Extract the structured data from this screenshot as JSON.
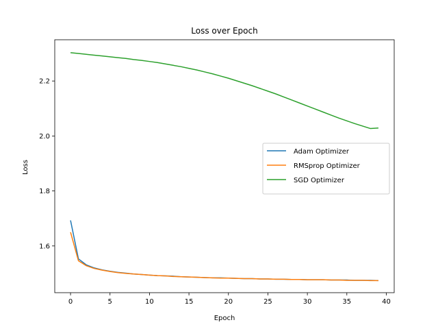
{
  "chart_data": {
    "type": "line",
    "title": "Loss over Epoch",
    "xlabel": "Epoch",
    "ylabel": "Loss",
    "xlim": [
      -2,
      41
    ],
    "ylim": [
      1.43,
      2.35
    ],
    "xticks": [
      0,
      5,
      10,
      15,
      20,
      25,
      30,
      35,
      40
    ],
    "yticks": [
      1.6,
      1.8,
      2.0,
      2.2
    ],
    "grid": false,
    "legend_position": "center-right",
    "x": [
      0,
      1,
      2,
      3,
      4,
      5,
      6,
      7,
      8,
      9,
      10,
      11,
      12,
      13,
      14,
      15,
      16,
      17,
      18,
      19,
      20,
      21,
      22,
      23,
      24,
      25,
      26,
      27,
      28,
      29,
      30,
      31,
      32,
      33,
      34,
      35,
      36,
      37,
      38,
      39
    ],
    "series": [
      {
        "name": "Adam Optimizer",
        "color": "#1f77b4",
        "values": [
          1.693,
          1.553,
          1.531,
          1.52,
          1.513,
          1.508,
          1.504,
          1.501,
          1.498,
          1.496,
          1.494,
          1.492,
          1.491,
          1.49,
          1.488,
          1.487,
          1.486,
          1.485,
          1.484,
          1.484,
          1.483,
          1.482,
          1.481,
          1.481,
          1.48,
          1.48,
          1.479,
          1.479,
          1.478,
          1.478,
          1.477,
          1.477,
          1.477,
          1.476,
          1.476,
          1.476,
          1.475,
          1.475,
          1.475,
          1.474
        ]
      },
      {
        "name": "RMSprop Optimizer",
        "color": "#ff7f0e",
        "values": [
          1.65,
          1.546,
          1.528,
          1.518,
          1.512,
          1.507,
          1.503,
          1.5,
          1.498,
          1.496,
          1.494,
          1.492,
          1.491,
          1.489,
          1.488,
          1.487,
          1.486,
          1.485,
          1.484,
          1.483,
          1.483,
          1.482,
          1.481,
          1.481,
          1.48,
          1.48,
          1.479,
          1.479,
          1.478,
          1.478,
          1.477,
          1.477,
          1.477,
          1.476,
          1.476,
          1.475,
          1.475,
          1.475,
          1.474,
          1.474
        ]
      },
      {
        "name": "SGD Optimizer",
        "color": "#2ca02c",
        "values": [
          2.303,
          2.3,
          2.297,
          2.294,
          2.291,
          2.288,
          2.285,
          2.282,
          2.278,
          2.275,
          2.271,
          2.267,
          2.262,
          2.257,
          2.252,
          2.246,
          2.24,
          2.233,
          2.226,
          2.218,
          2.21,
          2.201,
          2.192,
          2.183,
          2.173,
          2.163,
          2.153,
          2.142,
          2.131,
          2.12,
          2.109,
          2.098,
          2.087,
          2.076,
          2.065,
          2.055,
          2.045,
          2.036,
          2.027,
          2.029
        ]
      }
    ]
  }
}
